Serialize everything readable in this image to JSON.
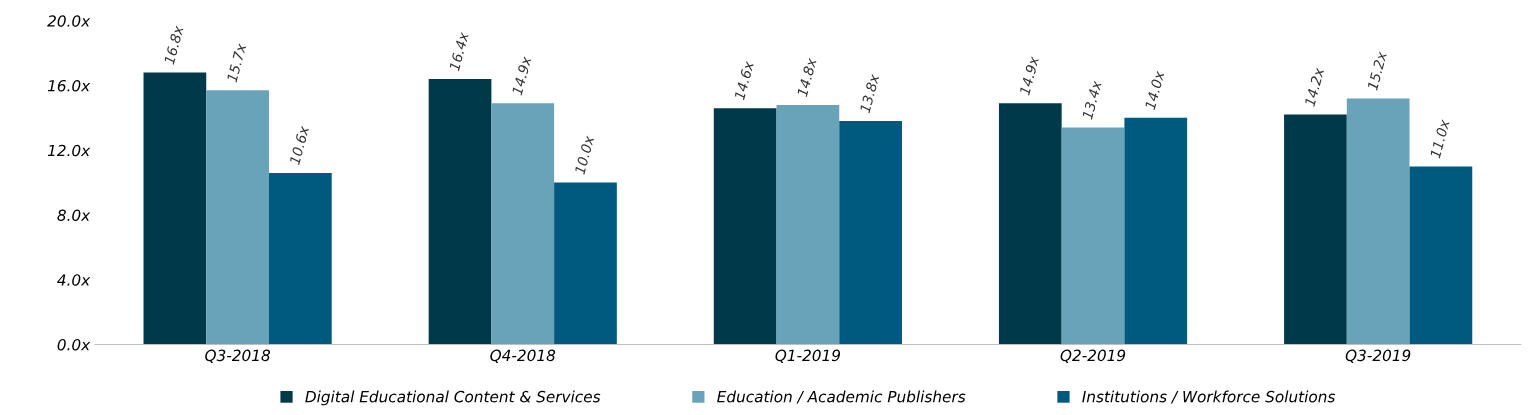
{
  "chart_data": {
    "type": "bar",
    "categories": [
      "Q3-2018",
      "Q4-2018",
      "Q1-2019",
      "Q2-2019",
      "Q3-2019"
    ],
    "series": [
      {
        "name": "Digital Educational Content & Services",
        "color": "#003a4a",
        "values": [
          16.8,
          16.4,
          14.6,
          14.9,
          14.2
        ],
        "value_labels": [
          "16.8x",
          "16.4x",
          "14.6x",
          "14.9x",
          "14.2x"
        ]
      },
      {
        "name": "Education / Academic Publishers",
        "color": "#69a3b9",
        "values": [
          15.7,
          14.9,
          14.8,
          13.4,
          15.2
        ],
        "value_labels": [
          "15.7x",
          "14.9x",
          "14.8x",
          "13.4x",
          "15.2x"
        ]
      },
      {
        "name": "Institutions / Workforce Solutions",
        "color": "#005a80",
        "values": [
          10.6,
          10.0,
          13.8,
          14.0,
          11.0
        ],
        "value_labels": [
          "10.6x",
          "10.0x",
          "13.8x",
          "14.0x",
          "11.0x"
        ]
      }
    ],
    "ylim": [
      0,
      20
    ],
    "yticks": [
      {
        "value": 0,
        "label": "0.0x"
      },
      {
        "value": 4,
        "label": "4.0x"
      },
      {
        "value": 8,
        "label": "8.0x"
      },
      {
        "value": 12,
        "label": "12.0x"
      },
      {
        "value": 16,
        "label": "16.0x"
      },
      {
        "value": 20,
        "label": "20.0x"
      }
    ],
    "grid": false,
    "legend": "bottom"
  }
}
